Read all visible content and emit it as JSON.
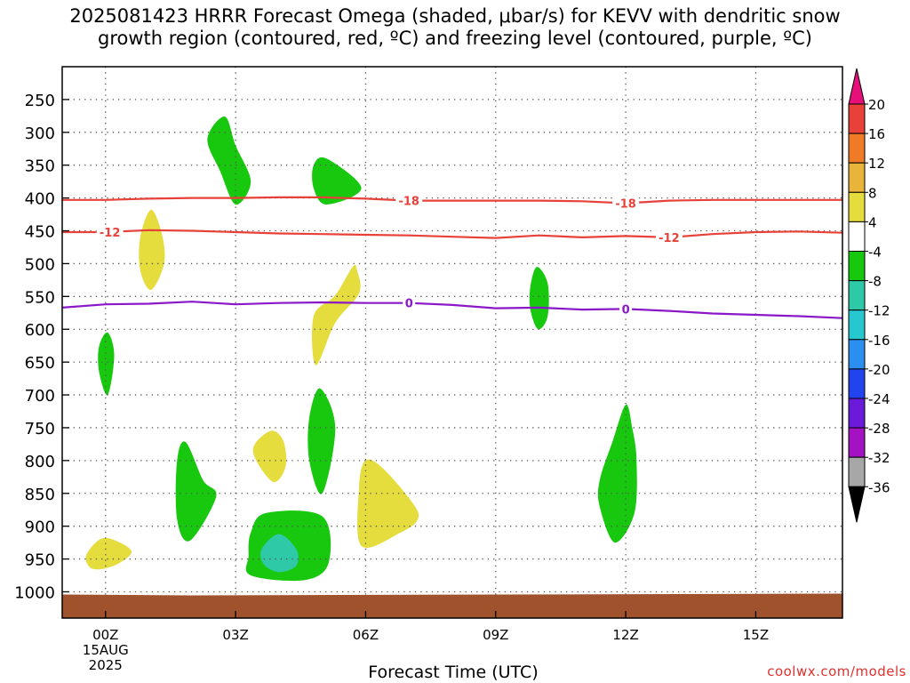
{
  "title_line1": "2025081423 HRRR Forecast Omega (shaded, μbar/s) for KEVV with dendritic snow",
  "title_line2": "growth region (contoured, red, ºC) and freezing level (contoured, purple, ºC)",
  "credit": "coolwx.com/models",
  "colors": {
    "dendritic": "#e8413a",
    "freezing": "#8b18c8",
    "ground": "#a0522d",
    "positive_omega": "#e5dc3d",
    "negative_omega": "#17c80e",
    "strong_negative_omega": "#2ec9a6"
  },
  "chart_data": {
    "type": "heatmap",
    "xlabel": "Forecast Time (UTC)",
    "x_range_hours": [
      -1,
      17
    ],
    "y_range_mb": [
      200,
      1040
    ],
    "y_scale": "linear, inverted (pressure)",
    "grid": true,
    "x_ticks": [
      {
        "hour": 0,
        "label": "00Z"
      },
      {
        "hour": 3,
        "label": "03Z"
      },
      {
        "hour": 6,
        "label": "06Z"
      },
      {
        "hour": 9,
        "label": "09Z"
      },
      {
        "hour": 12,
        "label": "12Z"
      },
      {
        "hour": 15,
        "label": "15Z"
      }
    ],
    "x_date_label": [
      "15AUG",
      "2025"
    ],
    "y_ticks": [
      250,
      300,
      350,
      400,
      450,
      500,
      550,
      600,
      650,
      700,
      750,
      800,
      850,
      900,
      950,
      1000
    ],
    "colorbar": {
      "levels": [
        "20",
        "16",
        "12",
        "8",
        "4",
        "-4",
        "-8",
        "-12",
        "-16",
        "-20",
        "-24",
        "-28",
        "-32",
        "-36"
      ],
      "colors": [
        "#e6107a",
        "#e8413a",
        "#ef7b27",
        "#e9b43a",
        "#e5dc3d",
        "#ffffff",
        "#17c80e",
        "#2ec9a6",
        "#27c7d0",
        "#2a8fee",
        "#2244ee",
        "#6a1ad8",
        "#a412c2",
        "#a7a7a7",
        "#000000"
      ]
    },
    "contours": [
      {
        "name": "-18",
        "label": "-18",
        "color": "#e8413a",
        "points": [
          [
            -1,
            403
          ],
          [
            0,
            403
          ],
          [
            1,
            401
          ],
          [
            2,
            400
          ],
          [
            3,
            400
          ],
          [
            4,
            399
          ],
          [
            5,
            399
          ],
          [
            6,
            401
          ],
          [
            7,
            404
          ],
          [
            8,
            404
          ],
          [
            9,
            404
          ],
          [
            10,
            404
          ],
          [
            11,
            405
          ],
          [
            12,
            408
          ],
          [
            13,
            404
          ],
          [
            14,
            403
          ],
          [
            15,
            403
          ],
          [
            16,
            403
          ],
          [
            17,
            403
          ]
        ],
        "label_positions": [
          [
            7,
            404
          ],
          [
            12,
            408
          ]
        ]
      },
      {
        "name": "-12",
        "label": "-12",
        "color": "#e8413a",
        "points": [
          [
            -1,
            452
          ],
          [
            0,
            452
          ],
          [
            1,
            449
          ],
          [
            2,
            450
          ],
          [
            3,
            452
          ],
          [
            4,
            454
          ],
          [
            5,
            455
          ],
          [
            6,
            456
          ],
          [
            7,
            457
          ],
          [
            8,
            459
          ],
          [
            9,
            461
          ],
          [
            10,
            457
          ],
          [
            11,
            460
          ],
          [
            12,
            458
          ],
          [
            13,
            460
          ],
          [
            14,
            455
          ],
          [
            15,
            452
          ],
          [
            16,
            451
          ],
          [
            17,
            453
          ]
        ],
        "label_positions": [
          [
            0.1,
            452
          ],
          [
            13,
            460
          ]
        ]
      },
      {
        "name": "0",
        "label": "0",
        "color": "#8b18c8",
        "points": [
          [
            -1,
            567
          ],
          [
            0,
            562
          ],
          [
            1,
            561
          ],
          [
            2,
            558
          ],
          [
            3,
            562
          ],
          [
            4,
            560
          ],
          [
            5,
            559
          ],
          [
            6,
            560
          ],
          [
            7,
            560
          ],
          [
            8,
            563
          ],
          [
            9,
            568
          ],
          [
            10,
            567
          ],
          [
            11,
            570
          ],
          [
            12,
            569
          ],
          [
            13,
            572
          ],
          [
            14,
            576
          ],
          [
            15,
            578
          ],
          [
            16,
            580
          ],
          [
            17,
            583
          ]
        ],
        "label_positions": [
          [
            7,
            560
          ],
          [
            12,
            569
          ]
        ]
      }
    ],
    "omega_regions": [
      {
        "name": "positive",
        "color": "#e5dc3d",
        "points": [
          [
            -0.45,
            945
          ],
          [
            -0.1,
            919
          ],
          [
            0.3,
            924
          ],
          [
            0.6,
            940
          ],
          [
            0.2,
            960
          ],
          [
            -0.3,
            965
          ]
        ]
      },
      {
        "name": "positive",
        "color": "#e5dc3d",
        "points": [
          [
            0.8,
            460
          ],
          [
            1.05,
            418
          ],
          [
            1.3,
            455
          ],
          [
            1.35,
            500
          ],
          [
            1.05,
            540
          ],
          [
            0.8,
            510
          ]
        ]
      },
      {
        "name": "positive",
        "color": "#e5dc3d",
        "points": [
          [
            3.4,
            785
          ],
          [
            3.8,
            755
          ],
          [
            4.1,
            770
          ],
          [
            4.15,
            810
          ],
          [
            3.85,
            832
          ]
        ]
      },
      {
        "name": "positive",
        "color": "#e5dc3d",
        "points": [
          [
            4.8,
            580
          ],
          [
            5.3,
            548
          ],
          [
            5.7,
            505
          ],
          [
            5.8,
            510
          ],
          [
            5.85,
            545
          ],
          [
            5.3,
            590
          ],
          [
            4.85,
            655
          ]
        ]
      },
      {
        "name": "positive",
        "color": "#e5dc3d",
        "points": [
          [
            5.85,
            840
          ],
          [
            6.0,
            800
          ],
          [
            6.4,
            812
          ],
          [
            7.1,
            866
          ],
          [
            7.2,
            890
          ],
          [
            6.8,
            910
          ],
          [
            5.9,
            930
          ]
        ]
      },
      {
        "name": "negative",
        "color": "#17c80e",
        "points": [
          [
            2.35,
            310
          ],
          [
            2.75,
            276
          ],
          [
            3.0,
            320
          ],
          [
            3.35,
            375
          ],
          [
            3.0,
            410
          ],
          [
            2.65,
            360
          ]
        ]
      },
      {
        "name": "negative",
        "color": "#17c80e",
        "points": [
          [
            4.8,
            350
          ],
          [
            5.1,
            340
          ],
          [
            5.9,
            385
          ],
          [
            5.1,
            410
          ],
          [
            4.8,
            385
          ]
        ]
      },
      {
        "name": "negative",
        "color": "#17c80e",
        "points": [
          [
            -0.15,
            626
          ],
          [
            0.05,
            605
          ],
          [
            0.2,
            640
          ],
          [
            0.05,
            700
          ],
          [
            -0.15,
            665
          ]
        ]
      },
      {
        "name": "negative",
        "color": "#17c80e",
        "points": [
          [
            1.65,
            800
          ],
          [
            1.85,
            772
          ],
          [
            2.25,
            830
          ],
          [
            2.55,
            855
          ],
          [
            1.95,
            922
          ],
          [
            1.65,
            890
          ]
        ]
      },
      {
        "name": "negative",
        "color": "#17c80e",
        "points": [
          [
            4.7,
            735
          ],
          [
            4.95,
            690
          ],
          [
            5.3,
            750
          ],
          [
            5.0,
            850
          ],
          [
            4.7,
            800
          ]
        ]
      },
      {
        "name": "negative",
        "color": "#17c80e",
        "points": [
          [
            3.35,
            910
          ],
          [
            3.7,
            880
          ],
          [
            5.0,
            885
          ],
          [
            5.15,
            955
          ],
          [
            4.6,
            982
          ],
          [
            3.35,
            975
          ],
          [
            3.3,
            945
          ]
        ]
      },
      {
        "name": "strong_negative",
        "color": "#2ec9a6",
        "points": [
          [
            3.6,
            935
          ],
          [
            4.0,
            912
          ],
          [
            4.4,
            935
          ],
          [
            4.4,
            960
          ],
          [
            4.0,
            970
          ],
          [
            3.65,
            958
          ]
        ]
      },
      {
        "name": "negative",
        "color": "#17c80e",
        "points": [
          [
            9.8,
            535
          ],
          [
            9.95,
            505
          ],
          [
            10.2,
            530
          ],
          [
            10.2,
            580
          ],
          [
            9.98,
            600
          ],
          [
            9.8,
            570
          ]
        ]
      },
      {
        "name": "negative",
        "color": "#17c80e",
        "points": [
          [
            11.4,
            830
          ],
          [
            11.7,
            770
          ],
          [
            12.0,
            715
          ],
          [
            12.15,
            750
          ],
          [
            12.25,
            800
          ],
          [
            12.2,
            880
          ],
          [
            11.75,
            925
          ],
          [
            11.4,
            870
          ]
        ]
      }
    ]
  }
}
